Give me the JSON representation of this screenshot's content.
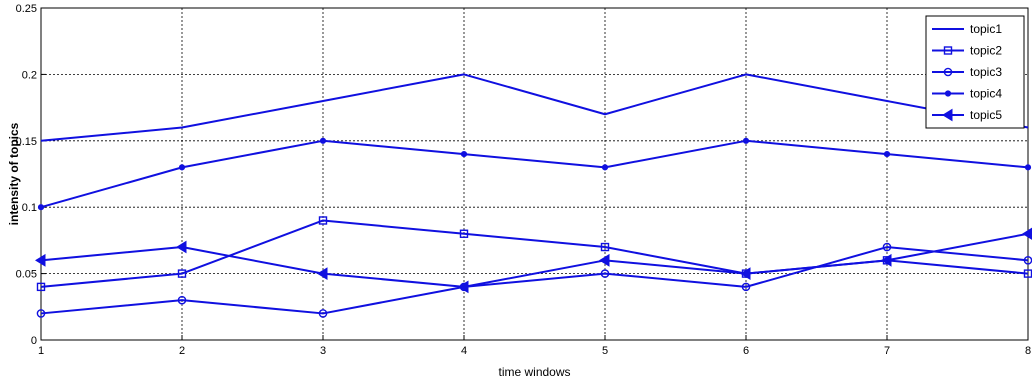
{
  "chart_data": {
    "type": "line",
    "title": "",
    "xlabel": "time windows",
    "ylabel": "intensity  of topics",
    "x": [
      1,
      2,
      3,
      4,
      5,
      6,
      7,
      8
    ],
    "xlim": [
      1,
      8
    ],
    "ylim": [
      0,
      0.25
    ],
    "xticks": [
      "1",
      "2",
      "3",
      "4",
      "5",
      "6",
      "7",
      "8"
    ],
    "yticks": [
      "0",
      "0.05",
      "0.1",
      "0.15",
      "0.2",
      "0.25"
    ],
    "grid": true,
    "legend_position": "top-right",
    "line_color": "#1010e0",
    "series": [
      {
        "name": "topic1",
        "marker": "none",
        "values": [
          0.15,
          0.16,
          0.18,
          0.2,
          0.17,
          0.2,
          0.18,
          0.16
        ]
      },
      {
        "name": "topic2",
        "marker": "square",
        "values": [
          0.04,
          0.05,
          0.09,
          0.08,
          0.07,
          0.05,
          0.06,
          0.05
        ]
      },
      {
        "name": "topic3",
        "marker": "circle",
        "values": [
          0.02,
          0.03,
          0.02,
          0.04,
          0.05,
          0.04,
          0.07,
          0.06
        ]
      },
      {
        "name": "topic4",
        "marker": "dot",
        "values": [
          0.1,
          0.13,
          0.15,
          0.14,
          0.13,
          0.15,
          0.14,
          0.13
        ]
      },
      {
        "name": "topic5",
        "marker": "triangle",
        "values": [
          0.06,
          0.07,
          0.05,
          0.04,
          0.06,
          0.05,
          0.06,
          0.08
        ]
      }
    ]
  }
}
